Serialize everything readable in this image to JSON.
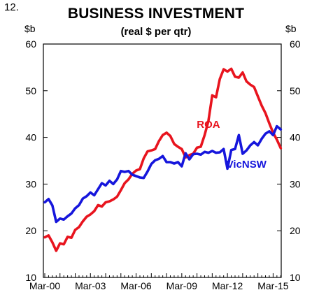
{
  "figure_number": "12.",
  "chart_data": {
    "type": "line",
    "title": "BUSINESS INVESTMENT",
    "subtitle": "(real $ per qtr)",
    "ylabel_left": "$b",
    "ylabel_right": "$b",
    "ylim": [
      10,
      60
    ],
    "yticks": [
      10,
      20,
      30,
      40,
      50,
      60
    ],
    "xticks": [
      "Mar-00",
      "Mar-03",
      "Mar-06",
      "Mar-09",
      "Mar-12",
      "Mar-15"
    ],
    "x_start": "Mar-00",
    "x_end": "Jun-16",
    "grid": false,
    "legend": "inline labels",
    "series": [
      {
        "name": "ROA",
        "color": "#e8141e",
        "values": [
          18.6,
          19.0,
          17.5,
          15.7,
          17.3,
          17.1,
          18.7,
          18.5,
          20.2,
          20.8,
          22.0,
          23.0,
          23.5,
          24.2,
          25.5,
          25.2,
          26.1,
          26.3,
          26.7,
          27.3,
          28.7,
          30.2,
          31.0,
          32.2,
          32.9,
          33.2,
          35.5,
          37.0,
          37.2,
          37.5,
          39.2,
          40.5,
          41.0,
          40.3,
          38.6,
          38.0,
          37.5,
          35.7,
          36.2,
          36.5,
          37.8,
          38.0,
          40.5,
          43.5,
          49.0,
          48.6,
          52.5,
          54.6,
          54.1,
          54.7,
          53.0,
          52.8,
          53.9,
          52.0,
          51.3,
          50.8,
          48.8,
          46.8,
          45.2,
          43.0,
          41.0,
          39.5,
          37.7
        ]
      },
      {
        "name": "VicNSW",
        "color": "#1616dc",
        "values": [
          26.1,
          26.8,
          25.4,
          21.9,
          22.6,
          22.4,
          23.1,
          23.7,
          24.8,
          25.5,
          26.9,
          27.4,
          28.2,
          27.6,
          28.9,
          30.2,
          29.7,
          30.7,
          30.0,
          31.0,
          32.8,
          32.6,
          32.8,
          32.0,
          31.7,
          31.4,
          31.3,
          32.7,
          34.3,
          35.1,
          35.4,
          36.0,
          34.7,
          34.7,
          34.4,
          34.7,
          33.8,
          36.6,
          35.3,
          36.4,
          36.5,
          36.3,
          36.9,
          36.7,
          37.1,
          36.7,
          36.8,
          37.5,
          33.3,
          37.3,
          37.5,
          40.5,
          36.5,
          37.2,
          38.3,
          39.0,
          38.3,
          39.7,
          40.8,
          41.3,
          40.5,
          42.4,
          41.7
        ]
      }
    ],
    "series_labels": [
      "ROA",
      "VicNSW"
    ]
  }
}
